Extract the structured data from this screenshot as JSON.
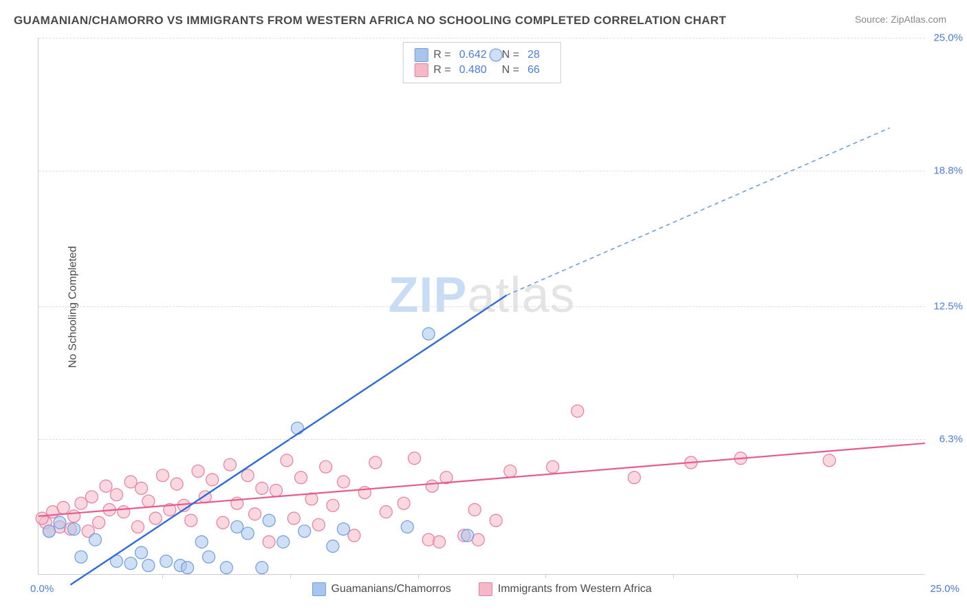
{
  "title": "GUAMANIAN/CHAMORRO VS IMMIGRANTS FROM WESTERN AFRICA NO SCHOOLING COMPLETED CORRELATION CHART",
  "source": "Source: ZipAtlas.com",
  "ylabel": "No Schooling Completed",
  "watermark_zip": "ZIP",
  "watermark_atlas": "atlas",
  "chart": {
    "type": "scatter",
    "xlim": [
      0,
      25
    ],
    "ylim": [
      0,
      25
    ],
    "yticks": [
      6.3,
      12.5,
      18.8,
      25.0
    ],
    "ytick_labels": [
      "6.3%",
      "12.5%",
      "18.8%",
      "25.0%"
    ],
    "xtick_positions": [
      3.5,
      7.1,
      10.7,
      14.3,
      17.9,
      21.4
    ],
    "x_origin_label": "0.0%",
    "x_max_label": "25.0%",
    "background_color": "#ffffff",
    "grid_color": "#dddddd",
    "axis_color": "#cccccc",
    "tick_label_color": "#4a7dd8",
    "series": [
      {
        "name": "Guamanians/Chamorros",
        "color_fill": "#a8c5ed",
        "color_stroke": "#6d9de0",
        "marker_radius": 9,
        "marker_opacity": 0.55,
        "R": "0.642",
        "N": "28",
        "trend": {
          "solid": {
            "x1": 0.9,
            "y1": -0.5,
            "x2": 13.2,
            "y2": 13.0,
            "color": "#2e6bd4",
            "width": 2.4
          },
          "dashed": {
            "x1": 13.2,
            "y1": 13.0,
            "x2": 24.0,
            "y2": 20.8,
            "color": "#6d9de0",
            "width": 1.6,
            "dash": "6,5"
          }
        },
        "points": [
          [
            1.0,
            2.1
          ],
          [
            1.6,
            1.6
          ],
          [
            1.2,
            0.8
          ],
          [
            2.2,
            0.6
          ],
          [
            2.6,
            0.5
          ],
          [
            2.9,
            1.0
          ],
          [
            3.1,
            0.4
          ],
          [
            3.6,
            0.6
          ],
          [
            4.0,
            0.4
          ],
          [
            4.2,
            0.3
          ],
          [
            4.6,
            1.5
          ],
          [
            4.8,
            0.8
          ],
          [
            5.3,
            0.3
          ],
          [
            5.6,
            2.2
          ],
          [
            5.9,
            1.9
          ],
          [
            6.3,
            0.3
          ],
          [
            6.5,
            2.5
          ],
          [
            6.9,
            1.5
          ],
          [
            7.3,
            6.8
          ],
          [
            7.5,
            2.0
          ],
          [
            8.3,
            1.3
          ],
          [
            8.6,
            2.1
          ],
          [
            10.4,
            2.2
          ],
          [
            11.0,
            11.2
          ],
          [
            12.1,
            1.8
          ],
          [
            12.9,
            24.2
          ],
          [
            0.6,
            2.4
          ],
          [
            0.3,
            2.0
          ]
        ]
      },
      {
        "name": "Immigrants from Western Africa",
        "color_fill": "#f5b8c6",
        "color_stroke": "#e87ca0",
        "marker_radius": 9,
        "marker_opacity": 0.55,
        "R": "0.480",
        "N": "66",
        "trend": {
          "solid": {
            "x1": 0,
            "y1": 2.7,
            "x2": 25.0,
            "y2": 6.1,
            "color": "#e75a8d",
            "width": 2.2
          }
        },
        "points": [
          [
            0.2,
            2.4
          ],
          [
            0.3,
            2.0
          ],
          [
            0.4,
            2.9
          ],
          [
            0.6,
            2.2
          ],
          [
            0.7,
            3.1
          ],
          [
            0.9,
            2.1
          ],
          [
            1.0,
            2.7
          ],
          [
            1.2,
            3.3
          ],
          [
            1.4,
            2.0
          ],
          [
            1.5,
            3.6
          ],
          [
            1.7,
            2.4
          ],
          [
            1.9,
            4.1
          ],
          [
            2.0,
            3.0
          ],
          [
            2.2,
            3.7
          ],
          [
            2.4,
            2.9
          ],
          [
            2.6,
            4.3
          ],
          [
            2.8,
            2.2
          ],
          [
            2.9,
            4.0
          ],
          [
            3.1,
            3.4
          ],
          [
            3.3,
            2.6
          ],
          [
            3.5,
            4.6
          ],
          [
            3.7,
            3.0
          ],
          [
            3.9,
            4.2
          ],
          [
            4.1,
            3.2
          ],
          [
            4.3,
            2.5
          ],
          [
            4.5,
            4.8
          ],
          [
            4.7,
            3.6
          ],
          [
            4.9,
            4.4
          ],
          [
            5.2,
            2.4
          ],
          [
            5.4,
            5.1
          ],
          [
            5.6,
            3.3
          ],
          [
            5.9,
            4.6
          ],
          [
            6.1,
            2.8
          ],
          [
            6.3,
            4.0
          ],
          [
            6.5,
            1.5
          ],
          [
            6.7,
            3.9
          ],
          [
            7.0,
            5.3
          ],
          [
            7.2,
            2.6
          ],
          [
            7.4,
            4.5
          ],
          [
            7.7,
            3.5
          ],
          [
            7.9,
            2.3
          ],
          [
            8.1,
            5.0
          ],
          [
            8.3,
            3.2
          ],
          [
            8.6,
            4.3
          ],
          [
            8.9,
            1.8
          ],
          [
            9.2,
            3.8
          ],
          [
            9.5,
            5.2
          ],
          [
            9.8,
            2.9
          ],
          [
            10.3,
            3.3
          ],
          [
            10.6,
            5.4
          ],
          [
            11.0,
            1.6
          ],
          [
            11.1,
            4.1
          ],
          [
            11.3,
            1.5
          ],
          [
            11.5,
            4.5
          ],
          [
            12.0,
            1.8
          ],
          [
            12.3,
            3.0
          ],
          [
            12.4,
            1.6
          ],
          [
            12.9,
            2.5
          ],
          [
            13.3,
            4.8
          ],
          [
            14.5,
            5.0
          ],
          [
            15.2,
            7.6
          ],
          [
            16.8,
            4.5
          ],
          [
            18.4,
            5.2
          ],
          [
            19.8,
            5.4
          ],
          [
            22.3,
            5.3
          ],
          [
            0.1,
            2.6
          ]
        ]
      }
    ]
  },
  "legend_bottom": [
    {
      "label": "Guamanians/Chamorros",
      "fill": "#a8c5ed",
      "stroke": "#6d9de0"
    },
    {
      "label": "Immigrants from Western Africa",
      "fill": "#f5b8c6",
      "stroke": "#e87ca0"
    }
  ]
}
